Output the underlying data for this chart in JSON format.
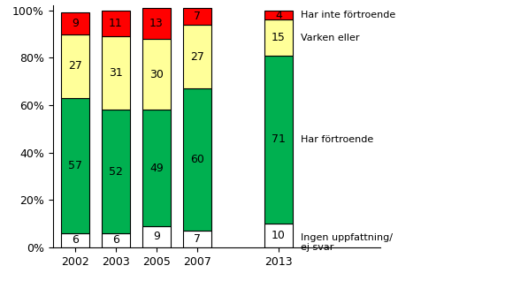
{
  "years": [
    "2002",
    "2003",
    "2005",
    "2007",
    "2013"
  ],
  "ingen": [
    6,
    6,
    9,
    7,
    10
  ],
  "har_fortroende": [
    57,
    52,
    49,
    60,
    71
  ],
  "varken": [
    27,
    31,
    30,
    27,
    15
  ],
  "har_inte": [
    9,
    11,
    13,
    7,
    4
  ],
  "colors": {
    "ingen": "#ffffff",
    "har_fortroende": "#00b050",
    "varken": "#ffff99",
    "har_inte": "#ff0000"
  },
  "legend_labels": [
    "Har inte förtroende",
    "Varken eller",
    "Har förtroende",
    "Ingen uppfattning/\nej svar"
  ],
  "yticks": [
    0,
    20,
    40,
    60,
    80,
    100
  ],
  "ytick_labels": [
    "0%",
    "20%",
    "40%",
    "60%",
    "80%",
    "100%"
  ],
  "bar_width": 0.7,
  "edgecolor": "#000000",
  "fontsize_bar": 9,
  "fontsize_legend": 8,
  "fontsize_axis": 9,
  "figsize": [
    5.97,
    3.18
  ],
  "dpi": 100
}
